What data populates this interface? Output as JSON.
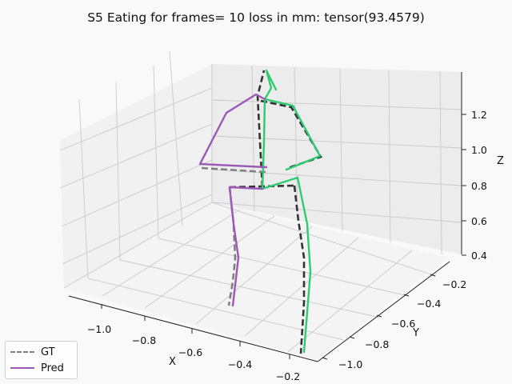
{
  "title": "S5 Eating for frames= 10 loss in mm: tensor(93.4579)",
  "colors": {
    "background": "#f9f9f9",
    "gt": "#808080",
    "gt_dark": "#333333",
    "pred_left": "#9b59b6",
    "pred_right": "#2ecc71"
  },
  "chart_data": {
    "type": "line",
    "projection": "3d",
    "xlabel": "X",
    "ylabel": "Y",
    "zlabel": "Z",
    "x_ticks": [
      "−1.0",
      "−0.8",
      "−0.6",
      "−0.4",
      "−0.2"
    ],
    "y_ticks": [
      "−1.0",
      "−0.8",
      "−0.6",
      "−0.4",
      "−0.2"
    ],
    "z_ticks": [
      "0.4",
      "0.6",
      "0.8",
      "1.0",
      "1.2"
    ],
    "grid": true,
    "legend": {
      "position": "bottom-left",
      "entries": [
        {
          "label": "GT",
          "style": "dashed",
          "color": "#808080"
        },
        {
          "label": "Pred",
          "style": "solid",
          "color": "#9b59b6"
        }
      ]
    },
    "series": [
      {
        "name": "GT",
        "style": "dashed",
        "segments": "skeleton"
      },
      {
        "name": "Pred",
        "style": "solid",
        "segments": "skeleton"
      }
    ]
  }
}
